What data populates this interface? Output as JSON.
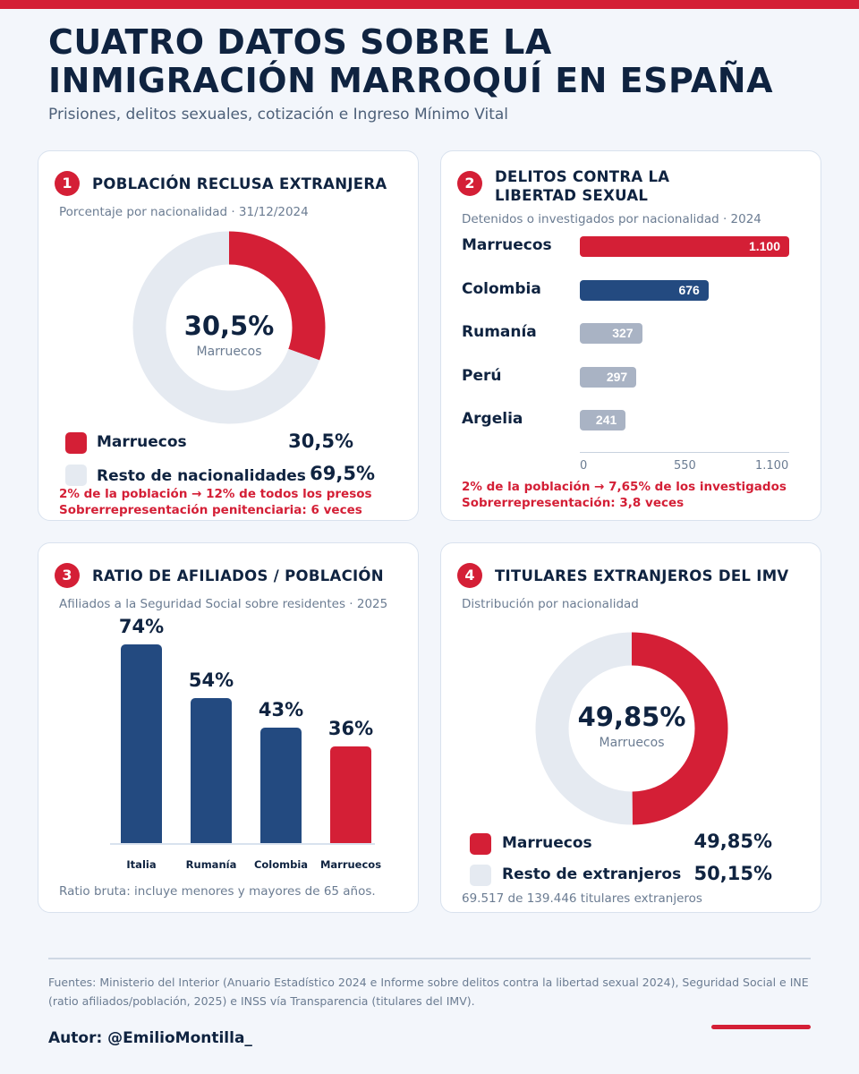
{
  "header": {
    "title": "CUATRO DATOS SOBRE LA INMIGRACIÓN MARROQUÍ EN ESPAÑA",
    "subtitle": "Prisiones, delitos sexuales, cotización e Ingreso Mínimo Vital"
  },
  "colors": {
    "red": "#d41f36",
    "navy": "#234a80",
    "gray_bar": "#a9b3c4",
    "donut_rest": "#e5eaf1"
  },
  "card1": {
    "number": "1",
    "title": "POBLACIÓN RECLUSA EXTRANJERA",
    "subtitle": "Porcentaje por nacionalidad · 31/12/2024",
    "center_value": "30,5%",
    "center_label": "Marruecos",
    "legend": [
      {
        "label": "Marruecos",
        "value": "30,5%"
      },
      {
        "label": "Resto de nacionalidades",
        "value": "69,5%"
      }
    ],
    "note1": "2% de la población → 12% de todos los presos",
    "note2": "Sobrerrepresentación penitenciaria: 6 veces"
  },
  "card2": {
    "number": "2",
    "title": "DELITOS CONTRA LA LIBERTAD SEXUAL",
    "subtitle": "Detenidos o investigados por nacionalidad · 2024",
    "ticks": [
      "0",
      "550",
      "1.100"
    ],
    "bar_labels": [
      "1.100",
      "676",
      "327",
      "297",
      "241"
    ],
    "note1": "2% de la población → 7,65% de los investigados",
    "note2": "Sobrerrepresentación: 3,8 veces"
  },
  "card3": {
    "number": "3",
    "title": "RATIO DE AFILIADOS / POBLACIÓN",
    "subtitle": "Afiliados a la Seguridad Social sobre residentes · 2025",
    "bar_labels": [
      "74%",
      "54%",
      "43%",
      "36%"
    ],
    "note": "Ratio bruta: incluye menores y mayores de 65 años."
  },
  "card4": {
    "number": "4",
    "title": "TITULARES EXTRANJEROS DEL IMV",
    "subtitle": "Distribución por nacionalidad",
    "center_value": "49,85%",
    "center_label": "Marruecos",
    "legend": [
      {
        "label": "Marruecos",
        "value": "49,85%"
      },
      {
        "label": "Resto de extranjeros",
        "value": "50,15%"
      }
    ],
    "note": "69.517 de 139.446 titulares extranjeros"
  },
  "chart_data": [
    {
      "type": "pie",
      "title": "POBLACIÓN RECLUSA EXTRANJERA",
      "subtitle": "Porcentaje por nacionalidad · 31/12/2024",
      "categories": [
        "Marruecos",
        "Resto de nacionalidades"
      ],
      "values": [
        30.5,
        69.5
      ]
    },
    {
      "type": "bar",
      "orientation": "horizontal",
      "title": "DELITOS CONTRA LA LIBERTAD SEXUAL",
      "subtitle": "Detenidos o investigados por nacionalidad · 2024",
      "categories": [
        "Marruecos",
        "Colombia",
        "Rumanía",
        "Perú",
        "Argelia"
      ],
      "values": [
        1100,
        676,
        327,
        297,
        241
      ],
      "xlim": [
        0,
        1100
      ],
      "grid": false
    },
    {
      "type": "bar",
      "orientation": "vertical",
      "title": "RATIO DE AFILIADOS / POBLACIÓN",
      "subtitle": "Afiliados a la Seguridad Social sobre residentes · 2025",
      "categories": [
        "Italia",
        "Rumanía",
        "Colombia",
        "Marruecos"
      ],
      "values": [
        74,
        54,
        43,
        36
      ],
      "ylim": [
        0,
        74
      ],
      "grid": false
    },
    {
      "type": "pie",
      "title": "TITULARES EXTRANJEROS DEL IMV",
      "subtitle": "Distribución por nacionalidad",
      "categories": [
        "Marruecos",
        "Resto de extranjeros"
      ],
      "values": [
        49.85,
        50.15
      ]
    }
  ],
  "footer": {
    "sources": "Fuentes: Ministerio del Interior (Anuario Estadístico 2024 e Informe sobre delitos contra la libertad sexual 2024), Seguridad Social e INE (ratio afiliados/población, 2025) e INSS vía Transparencia (titulares del IMV).",
    "author": "Autor: @EmilioMontilla_"
  }
}
